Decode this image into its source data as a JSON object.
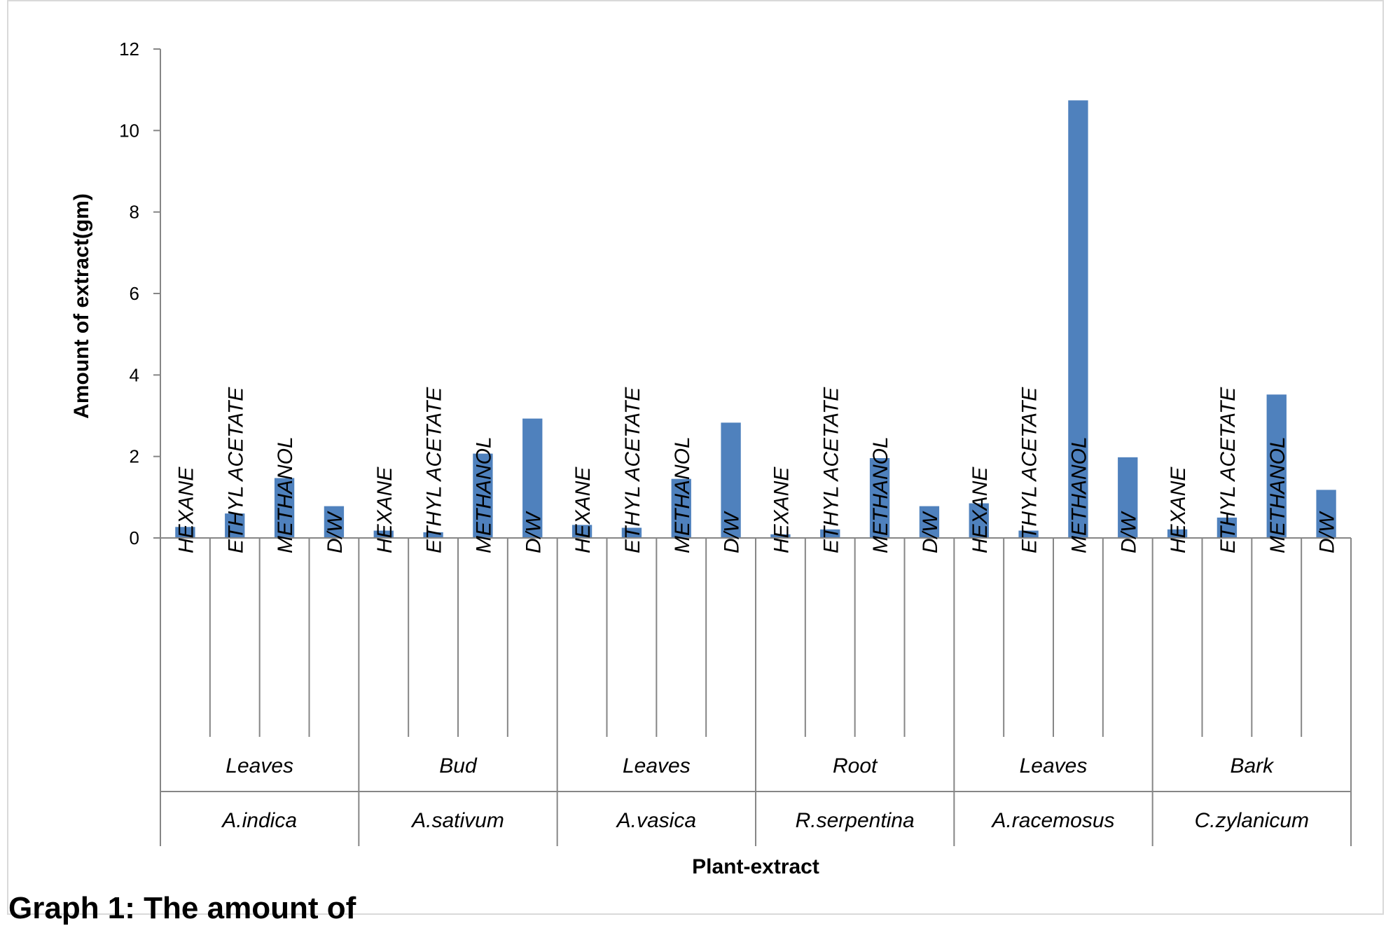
{
  "chart_data": {
    "type": "bar",
    "ylabel": "Amount of extract(gm)",
    "xlabel": "Plant-extract",
    "ylim": [
      0,
      12
    ],
    "yticks": [
      "0",
      "2",
      "4",
      "6",
      "8",
      "10",
      "12"
    ],
    "grid": false,
    "legend": "none",
    "bar_color": "#4f81bd",
    "groups": [
      {
        "plant": "A.indica",
        "part": "Leaves",
        "categories": [
          "HEXANE",
          "ETHYL ACETATE",
          "METHANOL",
          "D/W"
        ],
        "values": [
          0.27,
          0.6,
          1.47,
          0.78
        ]
      },
      {
        "plant": "A.sativum",
        "part": "Bud",
        "categories": [
          "HEXANE",
          "ETHYL ACETATE",
          "METHANOL",
          "D/W"
        ],
        "values": [
          0.18,
          0.14,
          2.07,
          2.93
        ]
      },
      {
        "plant": "A.vasica",
        "part": "Leaves",
        "categories": [
          "HEXANE",
          "ETHYL ACETATE",
          "METHANOL",
          "D/W"
        ],
        "values": [
          0.32,
          0.25,
          1.45,
          2.83
        ]
      },
      {
        "plant": "R.serpentina",
        "part": "Root",
        "categories": [
          "HEXANE",
          "ETHYL ACETATE",
          "METHANOL",
          "D/W"
        ],
        "values": [
          0.09,
          0.21,
          1.96,
          0.78
        ]
      },
      {
        "plant": "A.racemosus",
        "part": "Leaves",
        "categories": [
          "HEXANE",
          "ETHYL ACETATE",
          "METHANOL",
          "D/W"
        ],
        "values": [
          0.85,
          0.18,
          10.74,
          1.98
        ]
      },
      {
        "plant": "C.zylanicum",
        "part": "Bark",
        "categories": [
          "HEXANE",
          "ETHYL ACETATE",
          "METHANOL",
          "D/W"
        ],
        "values": [
          0.21,
          0.5,
          3.52,
          1.18
        ]
      }
    ]
  },
  "caption": "Graph 1: The amount of"
}
